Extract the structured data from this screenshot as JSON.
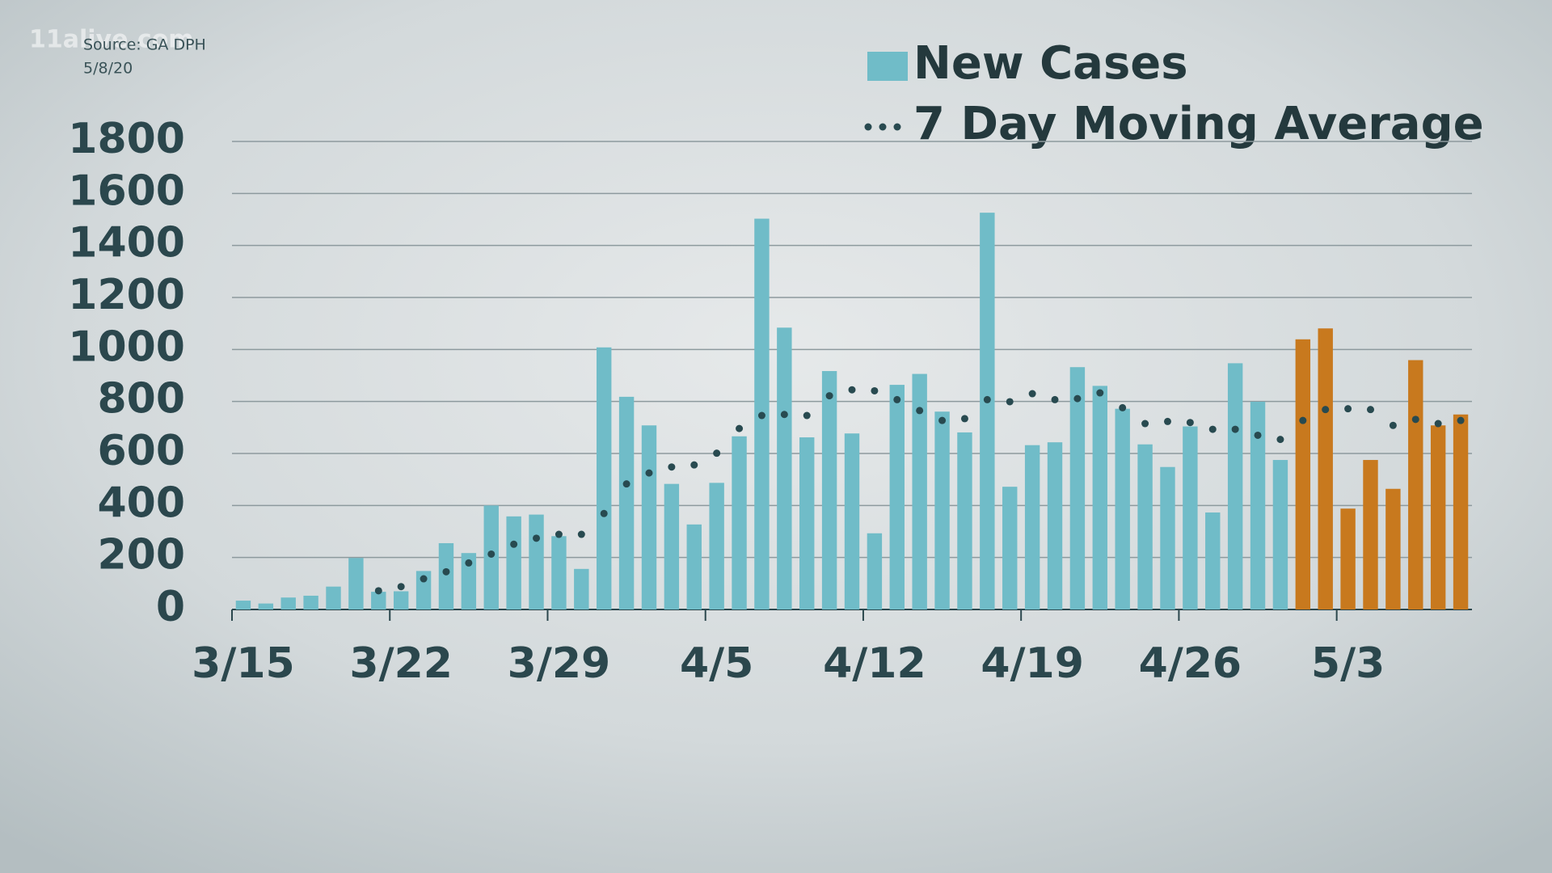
{
  "chart_data": {
    "type": "bar",
    "watermark": "11alive.com",
    "source": "Source: GA DPH",
    "date": "5/8/20",
    "categories": [
      "3/15",
      null,
      null,
      null,
      null,
      null,
      null,
      "3/22",
      null,
      null,
      null,
      null,
      null,
      null,
      "3/29",
      null,
      null,
      null,
      null,
      null,
      null,
      "4/5",
      null,
      null,
      null,
      null,
      null,
      null,
      "4/12",
      null,
      null,
      null,
      null,
      null,
      null,
      "4/19",
      null,
      null,
      null,
      null,
      null,
      null,
      "4/26",
      null,
      null,
      null,
      null,
      null,
      null,
      "5/3",
      null,
      null,
      null,
      null,
      null
    ],
    "series": [
      {
        "name": "New Cases",
        "color": "#70bcc8",
        "values": [
          34,
          23,
          46,
          53,
          88,
          198,
          68,
          70,
          148,
          255,
          217,
          400,
          358,
          365,
          282,
          156,
          1008,
          818,
          708,
          483,
          327,
          487,
          666,
          1503,
          1084,
          662,
          917,
          677,
          293,
          864,
          906,
          761,
          681,
          1526,
          472,
          632,
          643,
          932,
          860,
          772,
          635,
          548,
          704,
          373,
          947,
          799,
          575,
          1039,
          1081,
          388,
          575,
          464,
          959,
          708,
          750
        ],
        "colors": [
          "#70bcc8",
          "#70bcc8",
          "#70bcc8",
          "#70bcc8",
          "#70bcc8",
          "#70bcc8",
          "#70bcc8",
          "#70bcc8",
          "#70bcc8",
          "#70bcc8",
          "#70bcc8",
          "#70bcc8",
          "#70bcc8",
          "#70bcc8",
          "#70bcc8",
          "#70bcc8",
          "#70bcc8",
          "#70bcc8",
          "#70bcc8",
          "#70bcc8",
          "#70bcc8",
          "#70bcc8",
          "#70bcc8",
          "#70bcc8",
          "#70bcc8",
          "#70bcc8",
          "#70bcc8",
          "#70bcc8",
          "#70bcc8",
          "#70bcc8",
          "#70bcc8",
          "#70bcc8",
          "#70bcc8",
          "#70bcc8",
          "#70bcc8",
          "#70bcc8",
          "#70bcc8",
          "#70bcc8",
          "#70bcc8",
          "#70bcc8",
          "#70bcc8",
          "#70bcc8",
          "#70bcc8",
          "#70bcc8",
          "#70bcc8",
          "#70bcc8",
          "#70bcc8",
          "#c8791e",
          "#c8791e",
          "#c8791e",
          "#c8791e",
          "#c8791e",
          "#c8791e",
          "#c8791e",
          "#c8791e"
        ]
      },
      {
        "name": "7 Day Moving Average",
        "type": "dotted-line",
        "color": "#284a50",
        "values": [
          null,
          null,
          null,
          null,
          null,
          null,
          72,
          88,
          118,
          145,
          179,
          213,
          251,
          274,
          289,
          289,
          369,
          483,
          525,
          548,
          556,
          601,
          696,
          746,
          750,
          746,
          822,
          845,
          841,
          807,
          765,
          727,
          734,
          807,
          799,
          830,
          807,
          811,
          833,
          776,
          715,
          723,
          719,
          693,
          693,
          670,
          654,
          727,
          769,
          772,
          769,
          708,
          731,
          715,
          727
        ]
      }
    ],
    "ylim": [
      0,
      1800
    ],
    "yticks": [
      0,
      200,
      400,
      600,
      800,
      1000,
      1200,
      1400,
      1600,
      1800
    ],
    "grid": true
  }
}
